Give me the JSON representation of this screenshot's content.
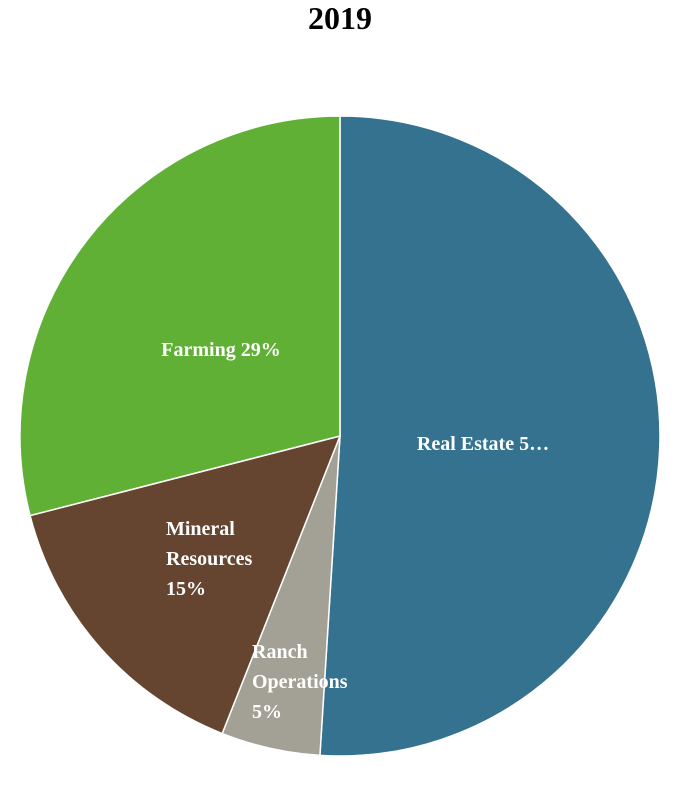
{
  "chart_data": {
    "type": "pie",
    "title": "2019",
    "values": [
      51,
      5,
      15,
      29
    ],
    "value_labels": [
      "Real Estate 5…",
      "Ranch Operations 5%",
      "Mineral Resources 15%",
      "Farming 29%"
    ],
    "colors": [
      "#34728f",
      "#a3a095",
      "#654530",
      "#5fb035"
    ]
  }
}
